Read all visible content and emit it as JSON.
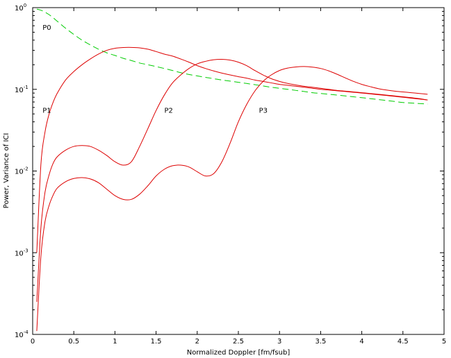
{
  "chart_data": {
    "type": "line",
    "title": "",
    "xlabel": "Normalized Doppler [fm/fsub]",
    "ylabel": "Power, Variance of ICI",
    "xlim": [
      0,
      5
    ],
    "ylim": [
      0.0001,
      1
    ],
    "yscale": "log",
    "grid": false,
    "legend": "none",
    "x_ticks": [
      "0",
      "0.5",
      "1",
      "1.5",
      "2",
      "2.5",
      "3",
      "3.5",
      "4",
      "4.5",
      "5"
    ],
    "y_ticks": [
      {
        "base": "10",
        "exp": "0"
      },
      {
        "base": "10",
        "exp": "-1"
      },
      {
        "base": "10",
        "exp": "-2"
      },
      {
        "base": "10",
        "exp": "-3"
      },
      {
        "base": "10",
        "exp": "-4"
      }
    ],
    "curve_labels": [
      {
        "text": "P0",
        "x": 0.12,
        "y": 0.58
      },
      {
        "text": "P1",
        "x": 0.12,
        "y": 0.056
      },
      {
        "text": "P2",
        "x": 1.6,
        "y": 0.056
      },
      {
        "text": "P3",
        "x": 2.75,
        "y": 0.056
      }
    ],
    "x": [
      0.05,
      0.1,
      0.15,
      0.2,
      0.25,
      0.3,
      0.4,
      0.5,
      0.6,
      0.7,
      0.8,
      0.9,
      1.0,
      1.1,
      1.2,
      1.3,
      1.4,
      1.5,
      1.6,
      1.7,
      1.8,
      1.9,
      2.0,
      2.1,
      2.2,
      2.3,
      2.4,
      2.5,
      2.6,
      2.7,
      2.8,
      2.9,
      3.0,
      3.1,
      3.2,
      3.3,
      3.4,
      3.5,
      3.6,
      3.7,
      3.8,
      3.9,
      4.0,
      4.1,
      4.2,
      4.3,
      4.4,
      4.5,
      4.6,
      4.7,
      4.8
    ],
    "series": [
      {
        "name": "P0",
        "color": "#00cc00",
        "dash": true,
        "values": [
          0.96,
          0.93,
          0.88,
          0.82,
          0.75,
          0.68,
          0.56,
          0.47,
          0.4,
          0.35,
          0.31,
          0.28,
          0.26,
          0.24,
          0.225,
          0.21,
          0.2,
          0.19,
          0.18,
          0.17,
          0.16,
          0.152,
          0.146,
          0.14,
          0.135,
          0.13,
          0.126,
          0.122,
          0.118,
          0.114,
          0.11,
          0.106,
          0.103,
          0.1,
          0.097,
          0.094,
          0.091,
          0.089,
          0.087,
          0.085,
          0.083,
          0.081,
          0.079,
          0.077,
          0.075,
          0.073,
          0.071,
          0.069,
          0.068,
          0.067,
          0.066
        ]
      },
      {
        "name": "P1",
        "color": "#dd0000",
        "dash": false,
        "values": [
          0.001,
          0.012,
          0.03,
          0.05,
          0.07,
          0.09,
          0.13,
          0.165,
          0.2,
          0.235,
          0.27,
          0.3,
          0.318,
          0.325,
          0.326,
          0.322,
          0.31,
          0.29,
          0.27,
          0.255,
          0.235,
          0.215,
          0.195,
          0.18,
          0.168,
          0.158,
          0.15,
          0.143,
          0.137,
          0.13,
          0.125,
          0.12,
          0.115,
          0.112,
          0.109,
          0.106,
          0.103,
          0.1,
          0.098,
          0.096,
          0.094,
          0.092,
          0.09,
          0.088,
          0.086,
          0.084,
          0.082,
          0.08,
          0.078,
          0.076,
          0.074
        ]
      },
      {
        "name": "P2",
        "color": "#dd0000",
        "dash": false,
        "values": [
          0.00025,
          0.002,
          0.0055,
          0.009,
          0.0125,
          0.015,
          0.018,
          0.02,
          0.0205,
          0.02,
          0.018,
          0.0155,
          0.013,
          0.0118,
          0.013,
          0.02,
          0.033,
          0.055,
          0.085,
          0.12,
          0.15,
          0.18,
          0.205,
          0.22,
          0.23,
          0.233,
          0.228,
          0.215,
          0.195,
          0.17,
          0.15,
          0.135,
          0.125,
          0.118,
          0.113,
          0.109,
          0.106,
          0.103,
          0.1,
          0.097,
          0.095,
          0.093,
          0.091,
          0.089,
          0.087,
          0.085,
          0.083,
          0.081,
          0.079,
          0.077,
          0.074
        ]
      },
      {
        "name": "P3",
        "color": "#dd0000",
        "dash": false,
        "values": [
          0.00011,
          0.0009,
          0.0024,
          0.0038,
          0.0051,
          0.0062,
          0.0074,
          0.0081,
          0.0083,
          0.008,
          0.0072,
          0.006,
          0.005,
          0.0045,
          0.0045,
          0.0052,
          0.0066,
          0.0087,
          0.0105,
          0.0116,
          0.0118,
          0.0112,
          0.0098,
          0.0087,
          0.0093,
          0.013,
          0.022,
          0.04,
          0.065,
          0.095,
          0.125,
          0.15,
          0.17,
          0.182,
          0.188,
          0.19,
          0.187,
          0.18,
          0.168,
          0.153,
          0.138,
          0.125,
          0.115,
          0.108,
          0.102,
          0.098,
          0.095,
          0.093,
          0.091,
          0.089,
          0.087
        ]
      }
    ]
  }
}
